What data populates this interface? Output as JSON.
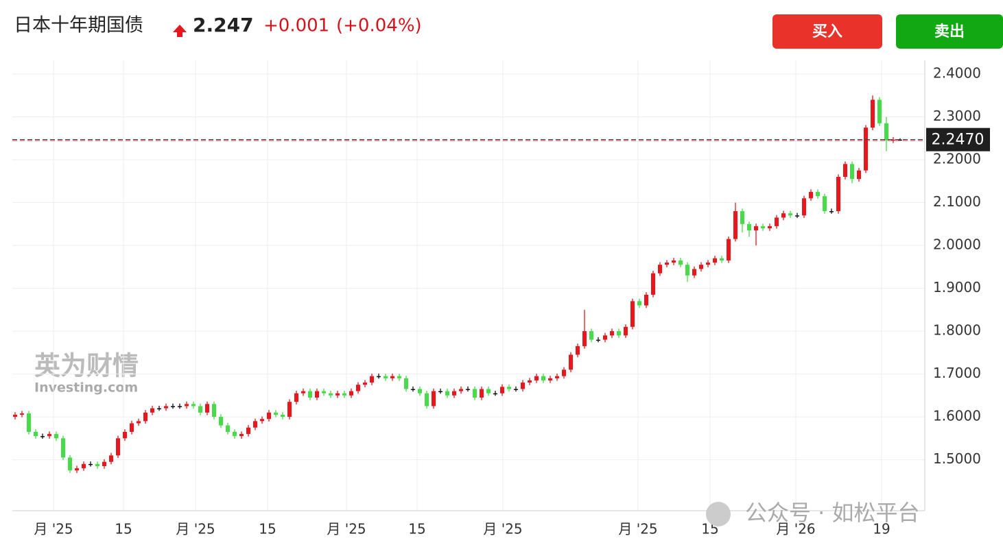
{
  "header": {
    "title": "日本十年期国债",
    "price": "2.247",
    "change": "+0.001",
    "change_pct": "(+0.04%)"
  },
  "buttons": {
    "buy": "买入",
    "sell": "卖出"
  },
  "watermarks": {
    "logo_cn": "英为财情",
    "logo_en": "Investing.com",
    "wechat": "公众号 · 如松平台"
  },
  "chart_data": {
    "type": "candlestick",
    "up_color": "#e8161d",
    "down_color": "#46dc48",
    "flat_color": "#111111",
    "open": [
      1.6,
      1.605,
      1.608,
      1.565,
      1.555,
      1.555,
      1.56,
      1.55,
      1.505,
      1.475,
      1.48,
      1.49,
      1.49,
      1.485,
      1.495,
      1.51,
      1.55,
      1.565,
      1.585,
      1.59,
      1.61,
      1.62,
      1.62,
      1.625,
      1.625,
      1.625,
      1.63,
      1.625,
      1.61,
      1.63,
      1.6,
      1.58,
      1.565,
      1.555,
      1.56,
      1.575,
      1.59,
      1.595,
      1.61,
      1.605,
      1.6,
      1.635,
      1.655,
      1.66,
      1.645,
      1.66,
      1.655,
      1.65,
      1.655,
      1.65,
      1.66,
      1.675,
      1.68,
      1.695,
      1.695,
      1.69,
      1.695,
      1.69,
      1.665,
      1.665,
      1.655,
      1.625,
      1.66,
      1.66,
      1.65,
      1.66,
      1.665,
      1.665,
      1.645,
      1.665,
      1.655,
      1.655,
      1.67,
      1.665,
      1.665,
      1.68,
      1.685,
      1.695,
      1.685,
      1.69,
      1.695,
      1.71,
      1.745,
      1.765,
      1.8,
      1.78,
      1.78,
      1.79,
      1.8,
      1.79,
      1.81,
      1.87,
      1.86,
      1.885,
      1.935,
      1.955,
      1.96,
      1.965,
      1.955,
      1.93,
      1.945,
      1.955,
      1.96,
      1.97,
      1.965,
      2.015,
      2.08,
      2.05,
      2.035,
      2.045,
      2.04,
      2.045,
      2.065,
      2.075,
      2.07,
      2.07,
      2.11,
      2.125,
      2.115,
      2.08,
      2.08,
      2.16,
      2.19,
      2.155,
      2.175,
      2.275,
      2.34,
      2.285,
      2.245,
      2.247
    ],
    "high": [
      1.611,
      1.614,
      1.614,
      1.571,
      1.561,
      1.566,
      1.566,
      1.556,
      1.511,
      1.486,
      1.496,
      1.496,
      1.496,
      1.501,
      1.516,
      1.556,
      1.571,
      1.591,
      1.596,
      1.616,
      1.626,
      1.626,
      1.631,
      1.631,
      1.631,
      1.636,
      1.636,
      1.631,
      1.636,
      1.636,
      1.606,
      1.586,
      1.571,
      1.566,
      1.581,
      1.596,
      1.601,
      1.616,
      1.616,
      1.611,
      1.641,
      1.661,
      1.666,
      1.666,
      1.666,
      1.666,
      1.661,
      1.661,
      1.661,
      1.666,
      1.681,
      1.686,
      1.701,
      1.701,
      1.701,
      1.701,
      1.701,
      1.696,
      1.671,
      1.671,
      1.661,
      1.666,
      1.666,
      1.666,
      1.666,
      1.671,
      1.671,
      1.671,
      1.671,
      1.671,
      1.661,
      1.676,
      1.676,
      1.671,
      1.686,
      1.691,
      1.701,
      1.701,
      1.696,
      1.701,
      1.716,
      1.751,
      1.771,
      1.85,
      1.806,
      1.786,
      1.796,
      1.806,
      1.806,
      1.816,
      1.876,
      1.876,
      1.891,
      1.941,
      1.961,
      1.966,
      1.971,
      1.971,
      1.961,
      1.951,
      1.961,
      1.966,
      1.976,
      1.976,
      2.021,
      2.1,
      2.086,
      2.056,
      2.051,
      2.051,
      2.051,
      2.071,
      2.081,
      2.081,
      2.076,
      2.116,
      2.131,
      2.131,
      2.121,
      2.086,
      2.166,
      2.196,
      2.196,
      2.181,
      2.281,
      2.35,
      2.346,
      2.3,
      2.253,
      2.25
    ],
    "low": [
      1.594,
      1.599,
      1.559,
      1.549,
      1.549,
      1.549,
      1.544,
      1.499,
      1.469,
      1.469,
      1.474,
      1.484,
      1.479,
      1.479,
      1.489,
      1.504,
      1.544,
      1.559,
      1.579,
      1.584,
      1.604,
      1.614,
      1.614,
      1.619,
      1.619,
      1.619,
      1.619,
      1.604,
      1.604,
      1.594,
      1.574,
      1.559,
      1.549,
      1.549,
      1.554,
      1.569,
      1.584,
      1.589,
      1.599,
      1.594,
      1.594,
      1.629,
      1.649,
      1.639,
      1.639,
      1.649,
      1.644,
      1.644,
      1.644,
      1.644,
      1.654,
      1.669,
      1.674,
      1.689,
      1.684,
      1.684,
      1.684,
      1.659,
      1.659,
      1.649,
      1.619,
      1.619,
      1.654,
      1.644,
      1.644,
      1.654,
      1.659,
      1.639,
      1.639,
      1.649,
      1.649,
      1.649,
      1.659,
      1.659,
      1.659,
      1.674,
      1.679,
      1.679,
      1.679,
      1.684,
      1.689,
      1.704,
      1.739,
      1.759,
      1.774,
      1.774,
      1.774,
      1.784,
      1.784,
      1.784,
      1.804,
      1.854,
      1.854,
      1.879,
      1.929,
      1.949,
      1.954,
      1.949,
      1.915,
      1.924,
      1.939,
      1.949,
      1.954,
      1.959,
      1.959,
      2.009,
      2.03,
      2.02,
      2.0,
      2.034,
      2.034,
      2.039,
      2.059,
      2.064,
      2.064,
      2.064,
      2.104,
      2.109,
      2.074,
      2.074,
      2.074,
      2.154,
      2.145,
      2.149,
      2.169,
      2.269,
      2.279,
      2.22,
      2.239,
      2.244
    ],
    "close": [
      1.605,
      1.608,
      1.565,
      1.555,
      1.555,
      1.56,
      1.55,
      1.505,
      1.475,
      1.48,
      1.49,
      1.49,
      1.485,
      1.495,
      1.51,
      1.55,
      1.565,
      1.585,
      1.59,
      1.61,
      1.62,
      1.62,
      1.625,
      1.625,
      1.625,
      1.63,
      1.625,
      1.61,
      1.63,
      1.6,
      1.58,
      1.565,
      1.555,
      1.56,
      1.575,
      1.59,
      1.595,
      1.61,
      1.605,
      1.6,
      1.635,
      1.655,
      1.66,
      1.645,
      1.66,
      1.655,
      1.65,
      1.655,
      1.65,
      1.66,
      1.675,
      1.68,
      1.695,
      1.695,
      1.69,
      1.695,
      1.69,
      1.665,
      1.665,
      1.655,
      1.625,
      1.66,
      1.66,
      1.65,
      1.66,
      1.665,
      1.665,
      1.645,
      1.665,
      1.655,
      1.655,
      1.67,
      1.665,
      1.665,
      1.68,
      1.685,
      1.695,
      1.685,
      1.69,
      1.695,
      1.71,
      1.745,
      1.765,
      1.8,
      1.78,
      1.78,
      1.79,
      1.8,
      1.79,
      1.81,
      1.87,
      1.86,
      1.885,
      1.935,
      1.955,
      1.96,
      1.965,
      1.955,
      1.93,
      1.945,
      1.955,
      1.96,
      1.97,
      1.965,
      2.015,
      2.08,
      2.05,
      2.035,
      2.045,
      2.04,
      2.045,
      2.065,
      2.075,
      2.07,
      2.07,
      2.11,
      2.125,
      2.115,
      2.08,
      2.08,
      2.16,
      2.19,
      2.155,
      2.175,
      2.275,
      2.34,
      2.285,
      2.245,
      2.247,
      2.247
    ],
    "xlim": [
      -0.4,
      132.6
    ],
    "xticks": [
      {
        "value": 5.6,
        "label": "月 '25"
      },
      {
        "value": 15.8,
        "label": "15"
      },
      {
        "value": 26.3,
        "label": "月 '25"
      },
      {
        "value": 36.8,
        "label": "15"
      },
      {
        "value": 48.3,
        "label": "月 '25"
      },
      {
        "value": 58.6,
        "label": "15"
      },
      {
        "value": 71.1,
        "label": "月 '25"
      },
      {
        "value": 90.8,
        "label": "月 '25"
      },
      {
        "value": 101.3,
        "label": "15"
      },
      {
        "value": 113.8,
        "label": "月 '26"
      },
      {
        "value": 126.3,
        "label": "19"
      }
    ],
    "ylim": [
      1.381,
      2.432
    ],
    "yticks": [
      {
        "value": 1.5,
        "label": "1.5000"
      },
      {
        "value": 1.6,
        "label": "1.6000"
      },
      {
        "value": 1.7,
        "label": "1.7000"
      },
      {
        "value": 1.8,
        "label": "1.8000"
      },
      {
        "value": 1.9,
        "label": "1.9000"
      },
      {
        "value": 2.0,
        "label": "2.0000"
      },
      {
        "value": 2.1,
        "label": "2.1000"
      },
      {
        "value": 2.2,
        "label": "2.2000"
      },
      {
        "value": 2.3,
        "label": "2.3000"
      },
      {
        "value": 2.4,
        "label": "2.4000"
      }
    ],
    "last_label": {
      "value": 2.247,
      "label": "2.2470"
    },
    "grid": true
  }
}
